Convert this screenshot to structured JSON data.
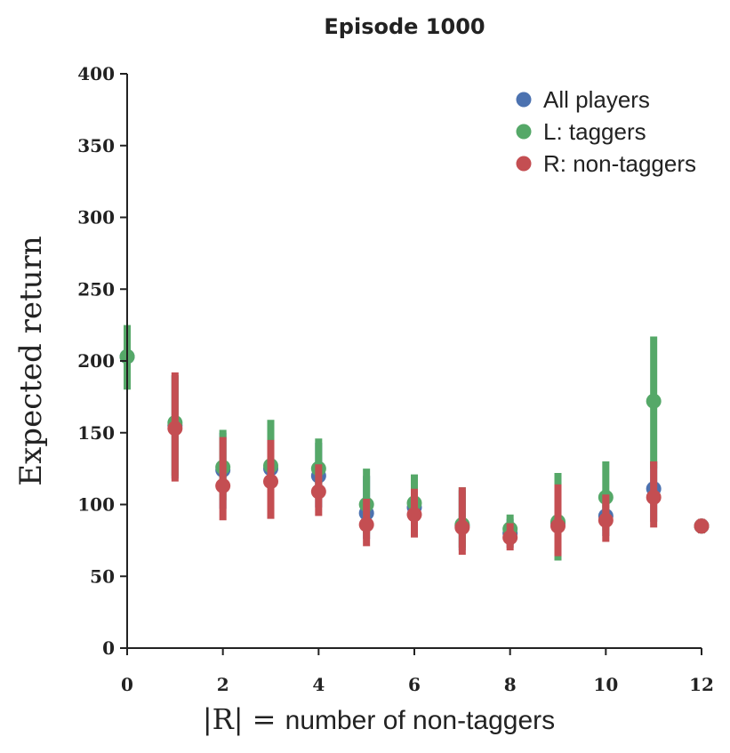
{
  "chart_data": {
    "type": "scatter",
    "title": "Episode 1000",
    "xlabel_math": "|R| = ",
    "xlabel_text": "number of non-taggers",
    "ylabel": "Expected return",
    "xlim": [
      0,
      12
    ],
    "ylim": [
      0,
      400
    ],
    "xticks": [
      0,
      2,
      4,
      6,
      8,
      10,
      12
    ],
    "yticks": [
      0,
      50,
      100,
      150,
      200,
      250,
      300,
      350,
      400
    ],
    "grid": false,
    "legend_position": "top-right",
    "series": [
      {
        "name": "All players",
        "color": "#4c72b0",
        "points": [
          {
            "x": 0,
            "y": 203,
            "lo": 181,
            "hi": 224
          },
          {
            "x": 1,
            "y": 155,
            "lo": 118,
            "hi": 190
          },
          {
            "x": 2,
            "y": 124,
            "lo": 97,
            "hi": 150
          },
          {
            "x": 3,
            "y": 125,
            "lo": 95,
            "hi": 156
          },
          {
            "x": 4,
            "y": 120,
            "lo": 98,
            "hi": 143
          },
          {
            "x": 5,
            "y": 94,
            "lo": 76,
            "hi": 120
          },
          {
            "x": 6,
            "y": 98,
            "lo": 80,
            "hi": 115
          },
          {
            "x": 7,
            "y": 85,
            "lo": 68,
            "hi": 110
          },
          {
            "x": 8,
            "y": 80,
            "lo": 70,
            "hi": 90
          },
          {
            "x": 9,
            "y": 87,
            "lo": 65,
            "hi": 115
          },
          {
            "x": 10,
            "y": 92,
            "lo": 78,
            "hi": 110
          },
          {
            "x": 11,
            "y": 111,
            "lo": 88,
            "hi": 130
          },
          {
            "x": 12,
            "y": 85,
            "lo": 80,
            "hi": 89
          }
        ]
      },
      {
        "name": "L: taggers",
        "color": "#55a868",
        "points": [
          {
            "x": 0,
            "y": 203,
            "lo": 180,
            "hi": 225
          },
          {
            "x": 1,
            "y": 157,
            "lo": 120,
            "hi": 190
          },
          {
            "x": 2,
            "y": 126,
            "lo": 103,
            "hi": 152
          },
          {
            "x": 3,
            "y": 127,
            "lo": 98,
            "hi": 159
          },
          {
            "x": 4,
            "y": 125,
            "lo": 105,
            "hi": 146
          },
          {
            "x": 5,
            "y": 100,
            "lo": 80,
            "hi": 125
          },
          {
            "x": 6,
            "y": 101,
            "lo": 84,
            "hi": 121
          },
          {
            "x": 7,
            "y": 86,
            "lo": 70,
            "hi": 112
          },
          {
            "x": 8,
            "y": 83,
            "lo": 72,
            "hi": 93
          },
          {
            "x": 9,
            "y": 88,
            "lo": 61,
            "hi": 122
          },
          {
            "x": 10,
            "y": 105,
            "lo": 82,
            "hi": 130
          },
          {
            "x": 11,
            "y": 172,
            "lo": 125,
            "hi": 217
          },
          {
            "x": 12,
            "y": 85,
            "lo": 80,
            "hi": 89
          }
        ]
      },
      {
        "name": "R: non-taggers",
        "color": "#c44e52",
        "points": [
          {
            "x": 1,
            "y": 153,
            "lo": 116,
            "hi": 192
          },
          {
            "x": 2,
            "y": 113,
            "lo": 89,
            "hi": 147
          },
          {
            "x": 3,
            "y": 116,
            "lo": 90,
            "hi": 145
          },
          {
            "x": 4,
            "y": 109,
            "lo": 92,
            "hi": 128
          },
          {
            "x": 5,
            "y": 86,
            "lo": 71,
            "hi": 104
          },
          {
            "x": 6,
            "y": 93,
            "lo": 77,
            "hi": 111
          },
          {
            "x": 7,
            "y": 84,
            "lo": 65,
            "hi": 112
          },
          {
            "x": 8,
            "y": 77,
            "lo": 68,
            "hi": 87
          },
          {
            "x": 9,
            "y": 85,
            "lo": 64,
            "hi": 114
          },
          {
            "x": 10,
            "y": 89,
            "lo": 74,
            "hi": 107
          },
          {
            "x": 11,
            "y": 105,
            "lo": 84,
            "hi": 130
          },
          {
            "x": 12,
            "y": 85,
            "lo": 80,
            "hi": 90
          }
        ]
      }
    ]
  }
}
